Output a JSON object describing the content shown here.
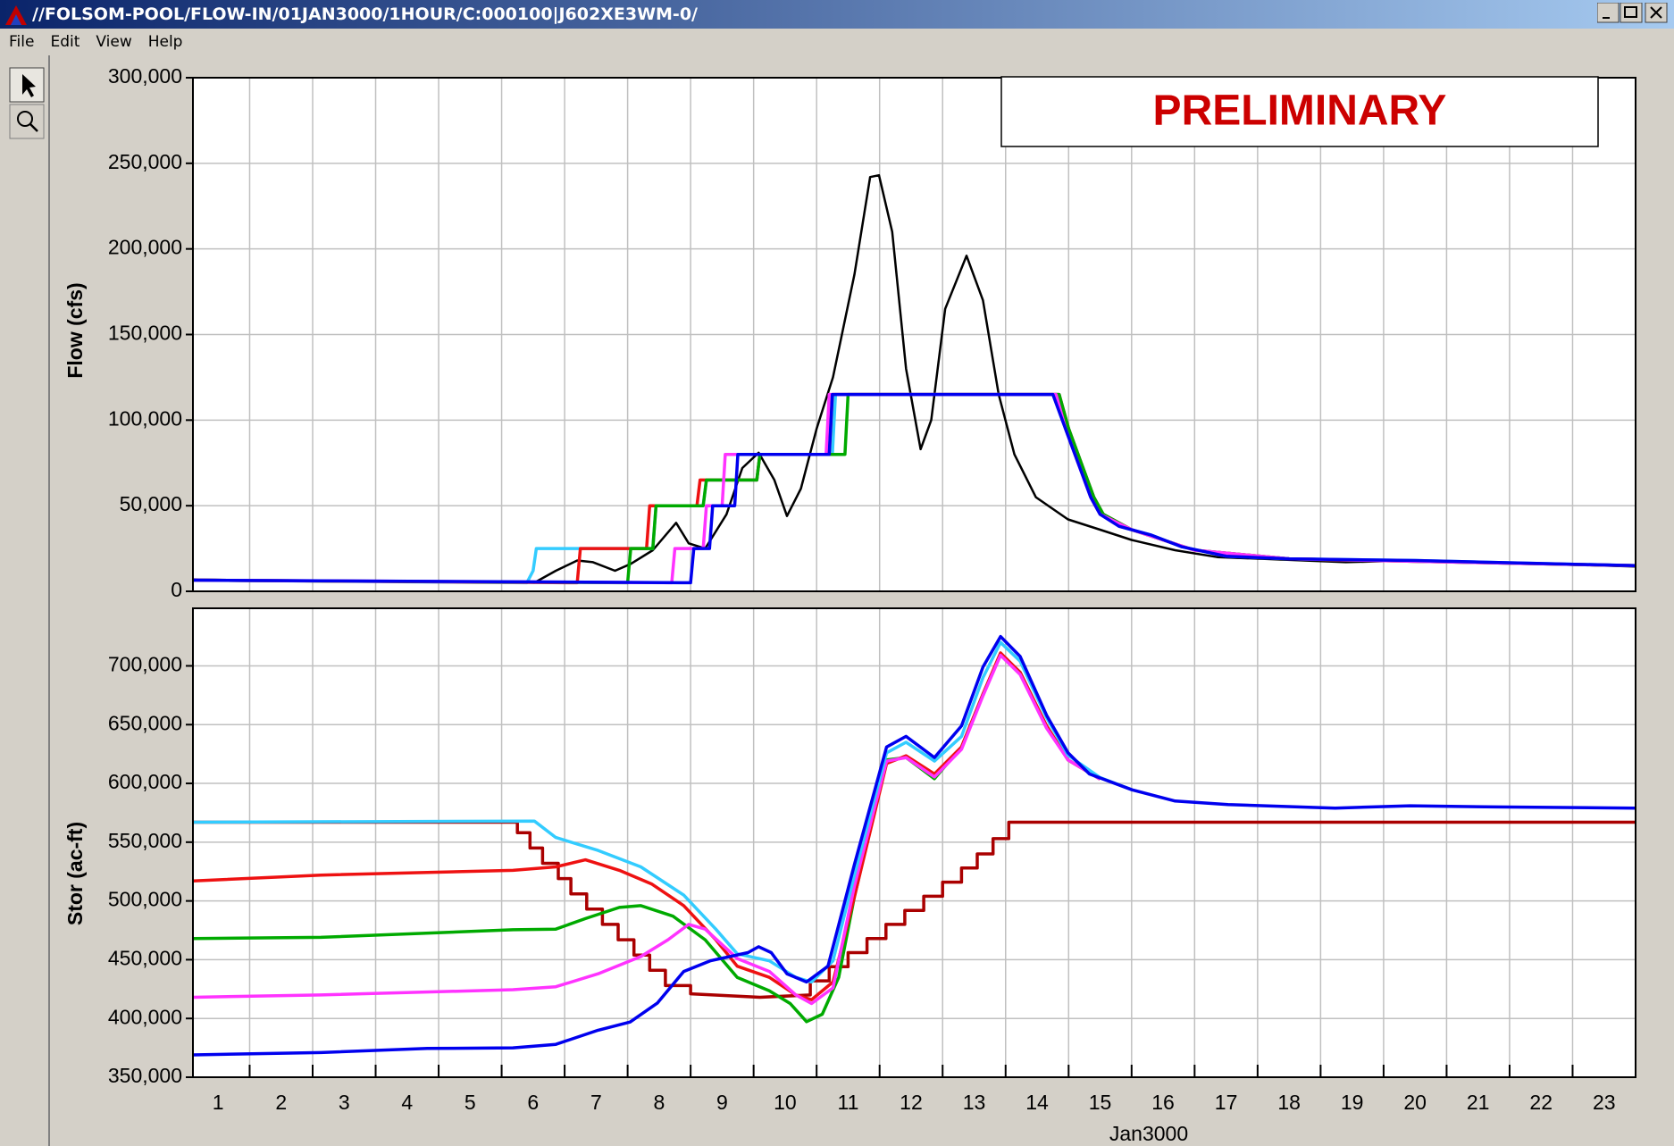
{
  "window": {
    "title": "//FOLSOM-POOL/FLOW-IN/01JAN3000/1HOUR/C:000100|J602XE3WM-0/",
    "menu": [
      "File",
      "Edit",
      "View",
      "Help"
    ]
  },
  "chart_data": [
    {
      "type": "line",
      "ylabel": "Flow (cfs)",
      "annotation": "PRELIMINARY",
      "grid": true,
      "ylim": [
        0,
        300000
      ],
      "yticks": [
        0,
        {
          "value": 50000,
          "label": "50,000"
        },
        {
          "value": 100000,
          "label": "100,000"
        },
        {
          "value": 150000,
          "label": "150,000"
        },
        {
          "value": 200000,
          "label": "200,000"
        },
        {
          "value": 250000,
          "label": "250,000"
        },
        {
          "value": 300000,
          "label": "300,000"
        }
      ],
      "series": [
        {
          "color": "#000000",
          "x": [
            0.6,
            2.0,
            5.68,
            6.02,
            6.36,
            6.7,
            6.95,
            7.3,
            7.55,
            7.9,
            8.27,
            8.47,
            8.73,
            9.07,
            9.32,
            9.58,
            9.83,
            10.03,
            10.25,
            10.5,
            10.76,
            11.1,
            11.35,
            11.49,
            11.7,
            11.92,
            12.15,
            12.32,
            12.54,
            12.88,
            13.14,
            13.39,
            13.64,
            13.98,
            14.49,
            15.0,
            15.5,
            16.19,
            16.86,
            17.88,
            18.9,
            19.92,
            20.93,
            21.95,
            23.5
          ],
          "values": [
            7000,
            6000,
            5500,
            5000,
            12000,
            18000,
            17000,
            12000,
            16000,
            24000,
            40000,
            28000,
            25000,
            45000,
            72000,
            81000,
            65000,
            44000,
            60000,
            95000,
            125000,
            185000,
            242000,
            243000,
            210000,
            130000,
            83000,
            100000,
            165000,
            196000,
            170000,
            115000,
            80000,
            55000,
            42000,
            36000,
            30000,
            24000,
            20000,
            18500,
            17000,
            18000,
            17000,
            16000,
            14500
          ]
        },
        {
          "color": "#33ccff",
          "x": [
            0.6,
            5.9,
            6.0,
            6.05,
            7.9,
            7.95,
            8.7,
            8.75,
            9.55,
            9.6,
            10.75,
            10.8,
            14.35,
            14.45,
            14.6,
            14.75,
            14.9,
            15.05,
            15.3,
            15.8,
            16.3,
            17.0,
            18.0,
            20.0,
            23.5
          ],
          "values": [
            6500,
            5000,
            12000,
            25000,
            25000,
            50000,
            50000,
            65000,
            65000,
            80000,
            80000,
            115000,
            115000,
            100000,
            85000,
            70000,
            55000,
            45000,
            38000,
            33000,
            26000,
            20500,
            19000,
            18000,
            15000
          ]
        },
        {
          "color": "#ee1111",
          "x": [
            0.6,
            6.7,
            6.75,
            7.8,
            7.85,
            8.6,
            8.65,
            9.55,
            9.6,
            10.7,
            10.75,
            14.35,
            14.5,
            14.7,
            14.9,
            15.05,
            15.5,
            16.5,
            18.0,
            23.5
          ],
          "values": [
            6500,
            5000,
            25000,
            25000,
            50000,
            50000,
            65000,
            65000,
            80000,
            80000,
            115000,
            115000,
            95000,
            75000,
            55000,
            45000,
            36000,
            24000,
            19000,
            15000
          ]
        },
        {
          "color": "#00aa00",
          "x": [
            0.6,
            7.5,
            7.55,
            7.9,
            7.95,
            8.7,
            8.75,
            9.55,
            9.6,
            10.95,
            11.0,
            14.35,
            14.5,
            14.7,
            14.9,
            15.05,
            15.5,
            16.5,
            18.0,
            23.5
          ],
          "values": [
            6500,
            5000,
            25000,
            25000,
            50000,
            50000,
            65000,
            65000,
            80000,
            80000,
            115000,
            115000,
            95000,
            75000,
            55000,
            45000,
            36000,
            24000,
            19000,
            15000
          ]
        },
        {
          "color": "#ff33ff",
          "x": [
            0.6,
            8.2,
            8.25,
            8.7,
            8.75,
            9.0,
            9.05,
            10.65,
            10.7,
            14.3,
            14.45,
            14.65,
            14.85,
            15.0,
            15.5,
            16.5,
            18.0,
            23.5
          ],
          "values": [
            6500,
            5000,
            25000,
            25000,
            50000,
            50000,
            80000,
            80000,
            115000,
            115000,
            95000,
            75000,
            55000,
            45000,
            36000,
            24000,
            19000,
            15000
          ]
        },
        {
          "color": "#0000ee",
          "x": [
            0.6,
            8.5,
            8.55,
            8.8,
            8.85,
            9.2,
            9.25,
            10.7,
            10.75,
            14.25,
            14.4,
            14.55,
            14.7,
            14.85,
            15.0,
            15.3,
            15.8,
            16.3,
            17.0,
            18.0,
            20.0,
            23.5
          ],
          "values": [
            6500,
            5000,
            25000,
            25000,
            50000,
            50000,
            80000,
            80000,
            115000,
            115000,
            100000,
            85000,
            70000,
            55000,
            45000,
            38000,
            33000,
            26000,
            20500,
            19000,
            18000,
            15000
          ]
        }
      ]
    },
    {
      "type": "line",
      "ylabel": "Stor (ac-ft)",
      "xlabel": "Jan3000",
      "grid": true,
      "xlim": [
        0.6,
        23.5
      ],
      "xticks": [
        1,
        2,
        3,
        4,
        5,
        6,
        7,
        8,
        9,
        10,
        11,
        12,
        13,
        14,
        15,
        16,
        17,
        18,
        19,
        20,
        21,
        22,
        23
      ],
      "ylim": [
        350000,
        749000
      ],
      "yticks": [
        {
          "value": 350000,
          "label": "350,000"
        },
        {
          "value": 400000,
          "label": "400,000"
        },
        {
          "value": 450000,
          "label": "450,000"
        },
        {
          "value": 500000,
          "label": "500,000"
        },
        {
          "value": 550000,
          "label": "550,000"
        },
        {
          "value": 600000,
          "label": "600,000"
        },
        {
          "value": 650000,
          "label": "650,000"
        },
        {
          "value": 700000,
          "label": "700,000"
        }
      ],
      "series": [
        {
          "color": "#aa0000",
          "x": [
            0.6,
            5.75,
            5.75,
            5.95,
            5.95,
            6.15,
            6.15,
            6.4,
            6.4,
            6.6,
            6.6,
            6.85,
            6.85,
            7.1,
            7.1,
            7.35,
            7.35,
            7.6,
            7.6,
            7.85,
            7.85,
            8.1,
            8.1,
            8.5,
            8.5,
            9.6,
            10.4,
            10.4,
            10.7,
            10.7,
            11.0,
            11.0,
            11.3,
            11.3,
            11.6,
            11.6,
            11.9,
            11.9,
            12.2,
            12.2,
            12.5,
            12.5,
            12.8,
            12.8,
            13.05,
            13.05,
            13.3,
            13.3,
            13.55,
            13.55,
            23.5
          ],
          "values": [
            567000,
            567000,
            558000,
            558000,
            545000,
            545000,
            532000,
            532000,
            519000,
            519000,
            506000,
            506000,
            493000,
            493000,
            480000,
            480000,
            467000,
            467000,
            454000,
            454000,
            441000,
            441000,
            428000,
            428000,
            421000,
            418000,
            420000,
            432000,
            432000,
            444000,
            444000,
            456000,
            456000,
            468000,
            468000,
            480000,
            480000,
            492000,
            492000,
            504000,
            504000,
            516000,
            516000,
            528000,
            528000,
            540000,
            540000,
            553000,
            553000,
            567000,
            567000
          ]
        },
        {
          "color": "#00aa00",
          "x": [
            0.6,
            2.63,
            5.68,
            6.36,
            6.83,
            7.37,
            7.71,
            8.22,
            8.73,
            9.24,
            9.75,
            10.08,
            10.34,
            10.59,
            10.85,
            11.1,
            11.61,
            11.92,
            12.37,
            12.8,
            13.14,
            13.42,
            13.73,
            14.15,
            14.49,
            15.0
          ],
          "values": [
            468000,
            469000,
            475500,
            476000,
            485000,
            494500,
            496000,
            487000,
            467000,
            435000,
            423600,
            412700,
            397300,
            403600,
            435000,
            503600,
            620000,
            622000,
            604000,
            631000,
            676000,
            710000,
            694500,
            649000,
            620000,
            603600
          ]
        },
        {
          "color": "#ee1111",
          "x": [
            0.6,
            2.63,
            5.68,
            6.36,
            6.83,
            7.37,
            7.88,
            8.39,
            8.9,
            9.24,
            9.75,
            10.17,
            10.42,
            10.76,
            11.1,
            11.61,
            11.92,
            12.37,
            12.8,
            13.14,
            13.42,
            13.73,
            14.15,
            14.49,
            15.0
          ],
          "values": [
            517000,
            522000,
            526000,
            529000,
            535000,
            526000,
            514500,
            496000,
            467000,
            444500,
            435000,
            420000,
            416000,
            431000,
            503600,
            617000,
            623500,
            608000,
            631000,
            676000,
            711000,
            694500,
            649000,
            620000,
            603600
          ]
        },
        {
          "color": "#ff33ff",
          "x": [
            0.6,
            2.63,
            5.68,
            6.36,
            7.03,
            7.71,
            8.14,
            8.47,
            8.73,
            9.24,
            9.75,
            10.17,
            10.42,
            10.76,
            11.1,
            11.61,
            11.92,
            12.37,
            12.8,
            13.14,
            13.42,
            13.73,
            14.15,
            14.49,
            15.0
          ],
          "values": [
            418000,
            420000,
            424500,
            427000,
            438000,
            452700,
            467000,
            480000,
            476000,
            451000,
            440000,
            420000,
            412700,
            426000,
            512700,
            619000,
            622000,
            605500,
            629000,
            674500,
            709000,
            692700,
            647000,
            620000,
            603600
          ]
        },
        {
          "color": "#33ccff",
          "x": [
            0.6,
            6.02,
            6.36,
            7.03,
            7.71,
            8.39,
            8.9,
            9.24,
            9.75,
            10.17,
            10.42,
            10.76,
            11.1,
            11.61,
            11.92,
            12.37,
            12.8,
            13.14,
            13.42,
            13.73,
            14.15,
            14.49,
            15.0,
            15.51
          ],
          "values": [
            567000,
            568000,
            554000,
            543000,
            529000,
            505000,
            476000,
            455000,
            449000,
            435000,
            431000,
            449000,
            522000,
            626000,
            635000,
            619000,
            640000,
            690000,
            720000,
            704000,
            656000,
            624000,
            605000,
            594500
          ]
        },
        {
          "color": "#0000ee",
          "x": [
            0.6,
            2.63,
            4.32,
            5.68,
            6.36,
            7.03,
            7.54,
            7.97,
            8.39,
            8.81,
            9.41,
            9.58,
            9.78,
            10.03,
            10.34,
            10.68,
            11.1,
            11.61,
            11.92,
            12.37,
            12.8,
            13.14,
            13.42,
            13.73,
            14.15,
            14.49,
            14.83,
            15.51,
            16.19,
            17.03,
            18.73,
            19.92,
            21.27,
            23.5
          ],
          "values": [
            369000,
            371000,
            374500,
            375000,
            378000,
            390000,
            397000,
            413000,
            440000,
            449000,
            456000,
            461000,
            456000,
            438000,
            431000,
            444500,
            531000,
            631000,
            640000,
            622000,
            649000,
            699000,
            725000,
            708000,
            658000,
            626000,
            608000,
            594500,
            585000,
            582000,
            579000,
            581000,
            580000,
            579000
          ]
        }
      ]
    }
  ]
}
